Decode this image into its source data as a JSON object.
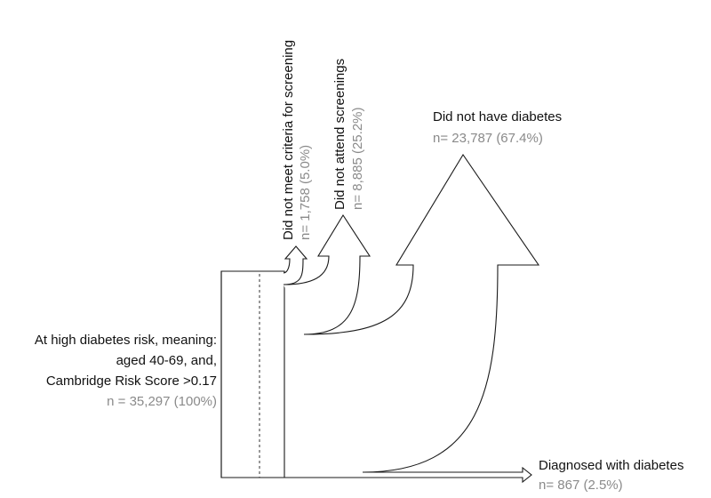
{
  "source": {
    "label_lines": [
      "At high diabetes risk, meaning:",
      "aged 40-69, and,",
      "Cambridge Risk Score >0.17"
    ],
    "count": "n = 35,297 (100%)"
  },
  "outcomes": [
    {
      "id": "not-eligible",
      "label": "Did not meet criteria for screening",
      "count": "n= 1,758 (5.0%)",
      "share": 5.0
    },
    {
      "id": "not-attend",
      "label": "Did not attend screenings",
      "count": "n= 8,885 (25.2%)",
      "share": 25.2
    },
    {
      "id": "no-diabetes",
      "label": "Did not have diabetes",
      "count": "n= 23,787 (67.4%)",
      "share": 67.4
    },
    {
      "id": "diabetes",
      "label": "Diagnosed with diabetes",
      "count": "n= 867 (2.5%)",
      "share": 2.5
    }
  ]
}
